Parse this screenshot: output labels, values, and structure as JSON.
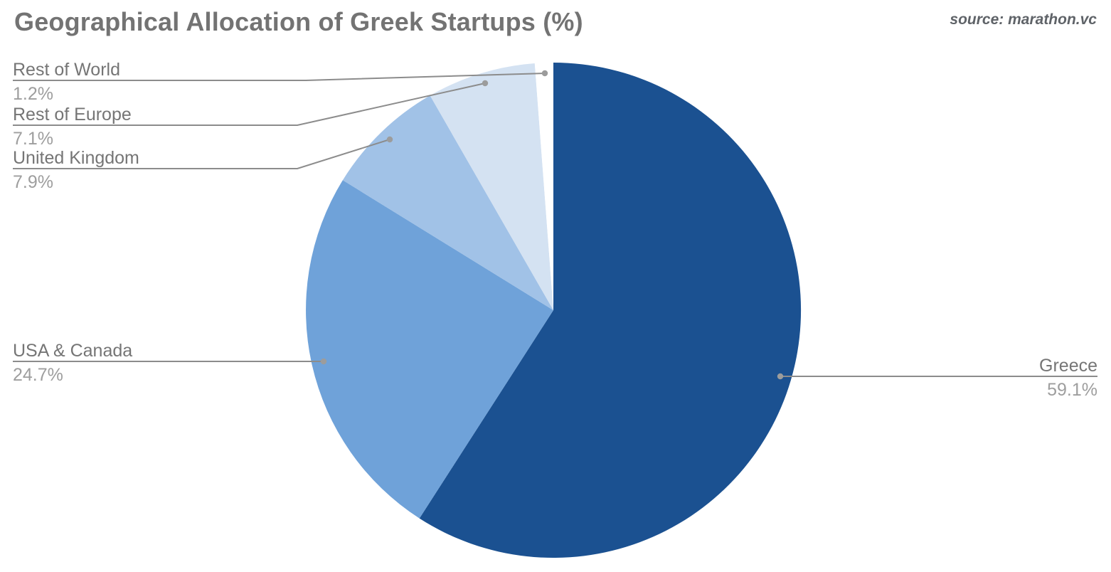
{
  "header": {
    "title": "Geographical Allocation of Greek Startups (%)",
    "source": "source: marathon.vc"
  },
  "chart_data": {
    "type": "pie",
    "title": "Geographical Allocation of Greek Startups (%)",
    "source": "source: marathon.vc",
    "unit": "%",
    "start_angle_deg": 0,
    "direction": "clockwise",
    "legend_position": "callout-labels",
    "slices": [
      {
        "label": "Greece",
        "value": 59.1,
        "pct_label": "59.1%",
        "color": "#1b5191"
      },
      {
        "label": "USA & Canada",
        "value": 24.7,
        "pct_label": "24.7%",
        "color": "#6fa2d9"
      },
      {
        "label": "United Kingdom",
        "value": 7.9,
        "pct_label": "7.9%",
        "color": "#a1c2e7"
      },
      {
        "label": "Rest of Europe",
        "value": 7.1,
        "pct_label": "7.1%",
        "color": "#d4e2f2"
      },
      {
        "label": "Rest of World",
        "value": 1.2,
        "pct_label": "1.2%",
        "color": "#ffffff"
      }
    ],
    "style": {
      "label_name_color": "#757575",
      "label_pct_color": "#9e9e9e",
      "leader_line_color": "#8c8c8c",
      "title_color": "#737373",
      "source_color": "#5f6368",
      "background": "#ffffff"
    }
  }
}
